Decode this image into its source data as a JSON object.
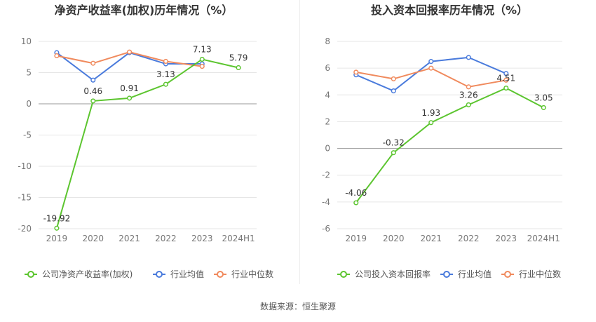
{
  "source_text": "数据来源：恒生聚源",
  "colors": {
    "company": "#5cc52f",
    "industry_avg": "#4a7bdc",
    "industry_median": "#f08a5d"
  },
  "chart_data": [
    {
      "type": "line",
      "title": "净资产收益率(加权)历年情况（%）",
      "categories": [
        "2019",
        "2020",
        "2021",
        "2022",
        "2023",
        "2024H1"
      ],
      "ylim": [
        -20,
        10
      ],
      "yticks": [
        10,
        5,
        0,
        -5,
        -10,
        -15,
        -20
      ],
      "series": [
        {
          "name": "公司净资产收益率(加权)",
          "color": "#5cc52f",
          "values": [
            -19.92,
            0.46,
            0.91,
            3.13,
            7.13,
            5.79
          ],
          "labels": true
        },
        {
          "name": "行业均值",
          "color": "#4a7bdc",
          "values": [
            8.2,
            3.8,
            8.2,
            6.4,
            6.4,
            null
          ]
        },
        {
          "name": "行业中位数",
          "color": "#f08a5d",
          "values": [
            7.7,
            6.5,
            8.3,
            6.8,
            6.0,
            null
          ]
        }
      ]
    },
    {
      "type": "line",
      "title": "投入资本回报率历年情况（%）",
      "categories": [
        "2019",
        "2020",
        "2021",
        "2022",
        "2023",
        "2024H1"
      ],
      "ylim": [
        -6,
        8
      ],
      "yticks": [
        8,
        6,
        4,
        2,
        0,
        -2,
        -4,
        -6
      ],
      "series": [
        {
          "name": "公司投入资本回报率",
          "color": "#5cc52f",
          "values": [
            -4.06,
            -0.32,
            1.93,
            3.26,
            4.51,
            3.05
          ],
          "labels": true
        },
        {
          "name": "行业均值",
          "color": "#4a7bdc",
          "values": [
            5.5,
            4.3,
            6.5,
            6.8,
            5.6,
            null
          ]
        },
        {
          "name": "行业中位数",
          "color": "#f08a5d",
          "values": [
            5.7,
            5.2,
            6.0,
            4.6,
            5.1,
            null
          ]
        }
      ]
    }
  ]
}
